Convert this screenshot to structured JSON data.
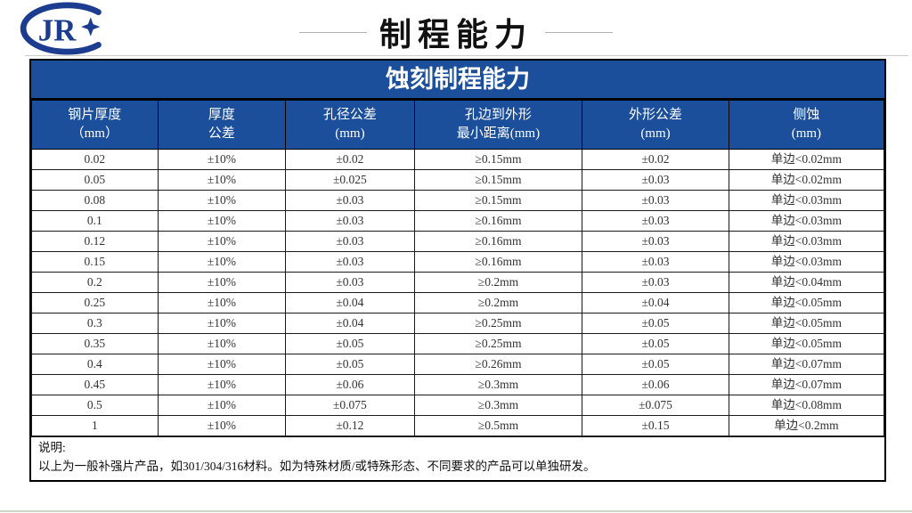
{
  "page": {
    "title": "制程能力"
  },
  "logo": {
    "text": "JR"
  },
  "colors": {
    "table_header_bg": "#1b4e9b",
    "logo_navy": "#1c3c8f",
    "bottom_accent": "#ccd7c6"
  },
  "table": {
    "title": "蚀刻制程能力",
    "columns": [
      {
        "line1": "钢片厚度",
        "line2": "（mm）"
      },
      {
        "line1": "厚度",
        "line2": "公差"
      },
      {
        "line1": "孔径公差",
        "line2": "(mm)"
      },
      {
        "line1": "孔边到外形",
        "line2": "最小距离(mm)"
      },
      {
        "line1": "外形公差",
        "line2": "(mm)"
      },
      {
        "line1": "侧蚀",
        "line2": "(mm)"
      }
    ],
    "rows": [
      [
        "0.02",
        "±10%",
        "±0.02",
        "≥0.15mm",
        "±0.02",
        "单边<0.02mm"
      ],
      [
        "0.05",
        "±10%",
        "±0.025",
        "≥0.15mm",
        "±0.03",
        "单边<0.02mm"
      ],
      [
        "0.08",
        "±10%",
        "±0.03",
        "≥0.15mm",
        "±0.03",
        "单边<0.03mm"
      ],
      [
        "0.1",
        "±10%",
        "±0.03",
        "≥0.16mm",
        "±0.03",
        "单边<0.03mm"
      ],
      [
        "0.12",
        "±10%",
        "±0.03",
        "≥0.16mm",
        "±0.03",
        "单边<0.03mm"
      ],
      [
        "0.15",
        "±10%",
        "±0.03",
        "≥0.16mm",
        "±0.03",
        "单边<0.03mm"
      ],
      [
        "0.2",
        "±10%",
        "±0.03",
        "≥0.2mm",
        "±0.03",
        "单边<0.04mm"
      ],
      [
        "0.25",
        "±10%",
        "±0.04",
        "≥0.2mm",
        "±0.04",
        "单边<0.05mm"
      ],
      [
        "0.3",
        "±10%",
        "±0.04",
        "≥0.25mm",
        "±0.05",
        "单边<0.05mm"
      ],
      [
        "0.35",
        "±10%",
        "±0.05",
        "≥0.25mm",
        "±0.05",
        "单边<0.05mm"
      ],
      [
        "0.4",
        "±10%",
        "±0.05",
        "≥0.26mm",
        "±0.05",
        "单边<0.07mm"
      ],
      [
        "0.45",
        "±10%",
        "±0.06",
        "≥0.3mm",
        "±0.06",
        "单边<0.07mm"
      ],
      [
        "0.5",
        "±10%",
        "±0.075",
        "≥0.3mm",
        "±0.075",
        "单边<0.08mm"
      ],
      [
        "1",
        "±10%",
        "±0.12",
        "≥0.5mm",
        "±0.15",
        "单边<0.2mm"
      ]
    ],
    "note_label": "说明:",
    "note_text": "以上为一般补强片产品，如301/304/316材料。如为特殊材质/或特殊形态、不同要求的产品可以单独研发。"
  }
}
